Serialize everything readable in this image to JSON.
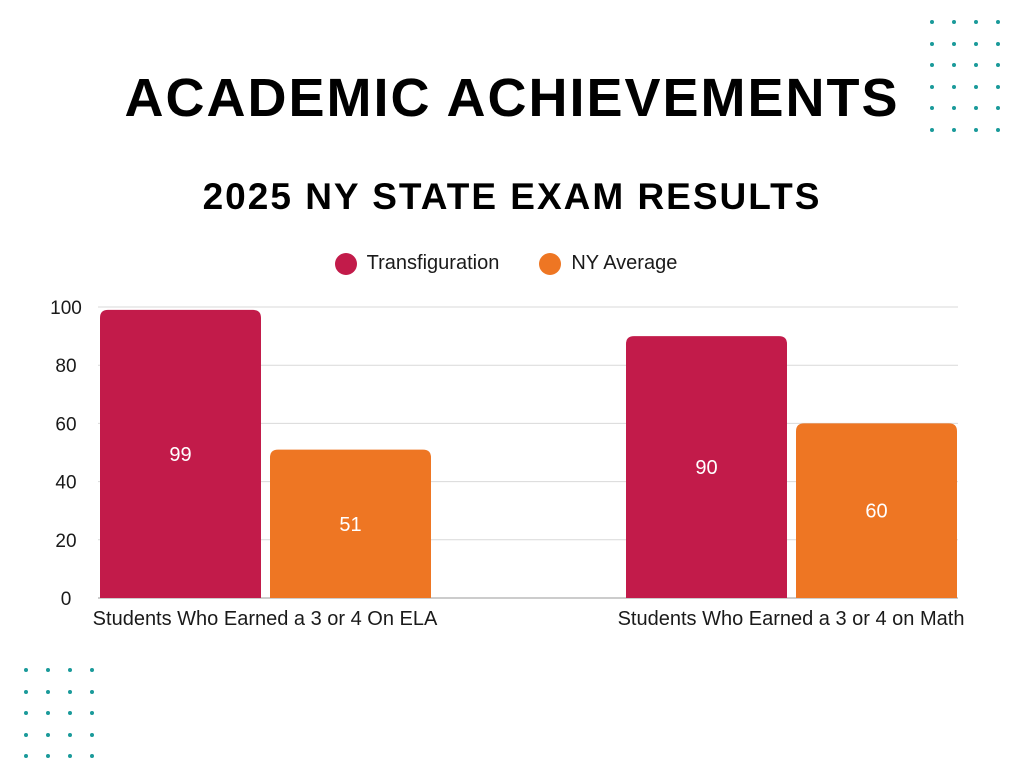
{
  "title": "ACADEMIC ACHIEVEMENTS",
  "subtitle": "2025 NY STATE EXAM RESULTS",
  "colors": {
    "transfiguration": "#c21b4a",
    "ny_average": "#ee7623",
    "grid": "#d9d9d9",
    "dots": "#1a9a9a"
  },
  "chart_data": {
    "type": "bar",
    "categories": [
      "Students Who Earned a 3 or 4 On ELA",
      "Students Who Earned a 3 or 4 on Math"
    ],
    "series": [
      {
        "name": "Transfiguration",
        "values": [
          99,
          90
        ],
        "color": "#c21b4a"
      },
      {
        "name": "NY Average",
        "values": [
          51,
          60
        ],
        "color": "#ee7623"
      }
    ],
    "yticks": [
      0,
      20,
      40,
      60,
      80,
      100
    ],
    "ylim": [
      0,
      100
    ],
    "grid": true,
    "legend": "top-center",
    "data_labels": true
  }
}
